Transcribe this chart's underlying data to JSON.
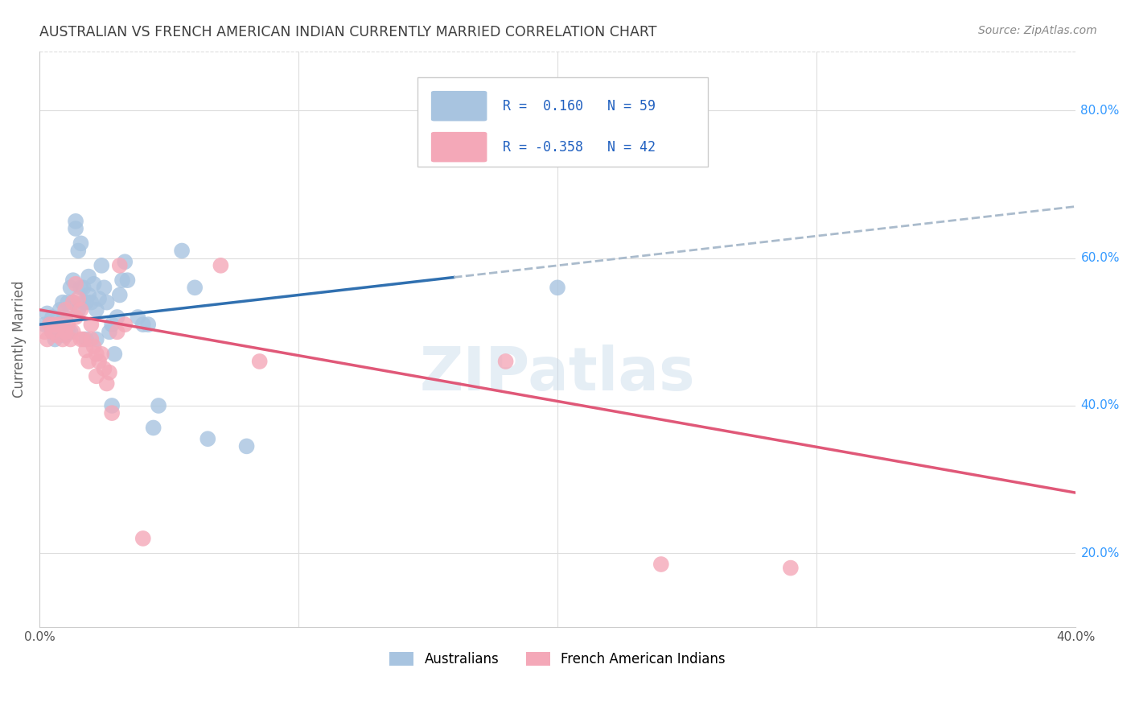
{
  "title": "AUSTRALIAN VS FRENCH AMERICAN INDIAN CURRENTLY MARRIED CORRELATION CHART",
  "source": "Source: ZipAtlas.com",
  "ylabel": "Currently Married",
  "watermark": "ZIPatlas",
  "R_australian": 0.16,
  "N_australian": 59,
  "R_french_indian": -0.358,
  "N_french_indian": 42,
  "xlim": [
    0.0,
    0.4
  ],
  "ylim": [
    0.1,
    0.88
  ],
  "yticks": [
    0.2,
    0.4,
    0.6,
    0.8
  ],
  "ytick_labels": [
    "20.0%",
    "40.0%",
    "60.0%",
    "80.0%"
  ],
  "xticks": [
    0.0,
    0.1,
    0.2,
    0.3,
    0.4
  ],
  "xtick_labels": [
    "0.0%",
    "",
    "",
    "",
    "40.0%"
  ],
  "australian_color": "#a8c4e0",
  "french_indian_color": "#f4a8b8",
  "trend_australian_solid_color": "#3070b0",
  "trend_australian_dashed_color": "#aabbcc",
  "trend_french_indian_color": "#e05878",
  "background_color": "#ffffff",
  "grid_color": "#dddddd",
  "legend_R_color": "#2060c0",
  "title_color": "#404040",
  "source_color": "#888888",
  "trend_solid_end_x": 0.16,
  "australian_points": [
    [
      0.002,
      0.51
    ],
    [
      0.003,
      0.525
    ],
    [
      0.004,
      0.51
    ],
    [
      0.005,
      0.5
    ],
    [
      0.005,
      0.52
    ],
    [
      0.006,
      0.5
    ],
    [
      0.006,
      0.49
    ],
    [
      0.007,
      0.51
    ],
    [
      0.008,
      0.5
    ],
    [
      0.008,
      0.53
    ],
    [
      0.009,
      0.51
    ],
    [
      0.009,
      0.54
    ],
    [
      0.01,
      0.495
    ],
    [
      0.01,
      0.52
    ],
    [
      0.011,
      0.5
    ],
    [
      0.011,
      0.54
    ],
    [
      0.012,
      0.5
    ],
    [
      0.012,
      0.56
    ],
    [
      0.013,
      0.54
    ],
    [
      0.013,
      0.57
    ],
    [
      0.014,
      0.64
    ],
    [
      0.014,
      0.65
    ],
    [
      0.015,
      0.61
    ],
    [
      0.015,
      0.53
    ],
    [
      0.016,
      0.62
    ],
    [
      0.016,
      0.56
    ],
    [
      0.017,
      0.54
    ],
    [
      0.017,
      0.56
    ],
    [
      0.018,
      0.49
    ],
    [
      0.018,
      0.54
    ],
    [
      0.019,
      0.55
    ],
    [
      0.019,
      0.575
    ],
    [
      0.02,
      0.54
    ],
    [
      0.021,
      0.565
    ],
    [
      0.022,
      0.49
    ],
    [
      0.022,
      0.53
    ],
    [
      0.023,
      0.545
    ],
    [
      0.024,
      0.59
    ],
    [
      0.025,
      0.56
    ],
    [
      0.026,
      0.54
    ],
    [
      0.027,
      0.5
    ],
    [
      0.028,
      0.51
    ],
    [
      0.028,
      0.4
    ],
    [
      0.029,
      0.47
    ],
    [
      0.03,
      0.52
    ],
    [
      0.031,
      0.55
    ],
    [
      0.032,
      0.57
    ],
    [
      0.033,
      0.595
    ],
    [
      0.034,
      0.57
    ],
    [
      0.038,
      0.52
    ],
    [
      0.04,
      0.51
    ],
    [
      0.042,
      0.51
    ],
    [
      0.044,
      0.37
    ],
    [
      0.046,
      0.4
    ],
    [
      0.055,
      0.61
    ],
    [
      0.06,
      0.56
    ],
    [
      0.065,
      0.355
    ],
    [
      0.08,
      0.345
    ],
    [
      0.2,
      0.56
    ]
  ],
  "french_indian_points": [
    [
      0.002,
      0.5
    ],
    [
      0.003,
      0.49
    ],
    [
      0.004,
      0.51
    ],
    [
      0.005,
      0.5
    ],
    [
      0.006,
      0.51
    ],
    [
      0.007,
      0.495
    ],
    [
      0.008,
      0.51
    ],
    [
      0.009,
      0.49
    ],
    [
      0.01,
      0.5
    ],
    [
      0.01,
      0.53
    ],
    [
      0.011,
      0.51
    ],
    [
      0.012,
      0.49
    ],
    [
      0.013,
      0.5
    ],
    [
      0.013,
      0.54
    ],
    [
      0.014,
      0.52
    ],
    [
      0.014,
      0.565
    ],
    [
      0.015,
      0.545
    ],
    [
      0.016,
      0.49
    ],
    [
      0.016,
      0.53
    ],
    [
      0.017,
      0.49
    ],
    [
      0.018,
      0.475
    ],
    [
      0.019,
      0.46
    ],
    [
      0.02,
      0.51
    ],
    [
      0.02,
      0.49
    ],
    [
      0.021,
      0.48
    ],
    [
      0.022,
      0.47
    ],
    [
      0.022,
      0.44
    ],
    [
      0.023,
      0.46
    ],
    [
      0.024,
      0.47
    ],
    [
      0.025,
      0.45
    ],
    [
      0.026,
      0.43
    ],
    [
      0.027,
      0.445
    ],
    [
      0.028,
      0.39
    ],
    [
      0.03,
      0.5
    ],
    [
      0.031,
      0.59
    ],
    [
      0.033,
      0.51
    ],
    [
      0.04,
      0.22
    ],
    [
      0.07,
      0.59
    ],
    [
      0.085,
      0.46
    ],
    [
      0.18,
      0.46
    ],
    [
      0.24,
      0.185
    ],
    [
      0.29,
      0.18
    ]
  ]
}
